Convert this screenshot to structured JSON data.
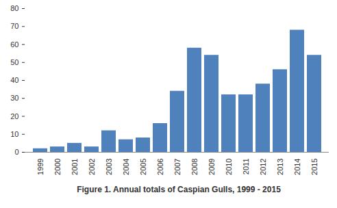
{
  "chart_data": {
    "type": "bar",
    "title": "Figure 1. Annual totals of Caspian Gulls, 1999 - 2015",
    "categories": [
      "1999",
      "2000",
      "2001",
      "2002",
      "2003",
      "2004",
      "2005",
      "2006",
      "2007",
      "2008",
      "2009",
      "2010",
      "2011",
      "2012",
      "2013",
      "2014",
      "2015"
    ],
    "values": [
      2,
      3,
      5,
      3,
      12,
      7,
      8,
      16,
      34,
      58,
      54,
      32,
      32,
      38,
      46,
      68,
      54
    ],
    "color": "#4f81bd",
    "ylim": [
      0,
      80
    ],
    "yticks": [
      0,
      10,
      20,
      30,
      40,
      50,
      60,
      70,
      80
    ],
    "grid": false
  }
}
